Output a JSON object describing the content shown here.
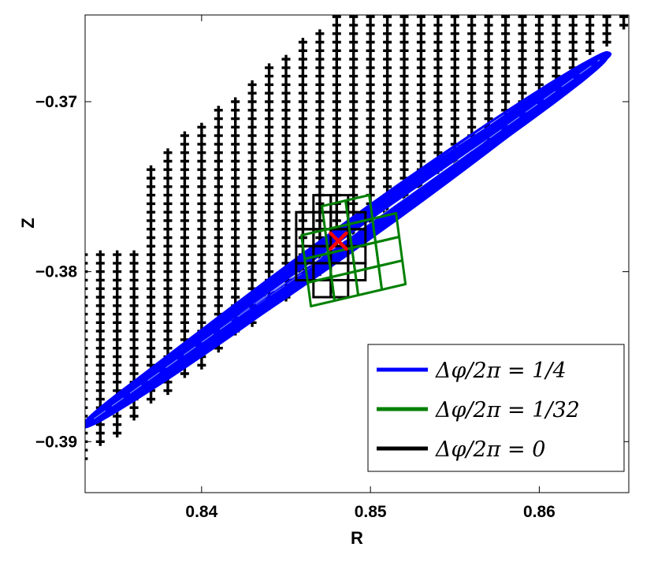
{
  "chart_data": {
    "type": "scatter",
    "xlabel": "R",
    "ylabel": "Z",
    "xlim": [
      0.8331,
      0.8653
    ],
    "ylim": [
      -0.393,
      -0.3649
    ],
    "xticks": [
      0.84,
      0.85,
      0.86
    ],
    "xtick_labels": [
      "0.84",
      "0.85",
      "0.86"
    ],
    "yticks": [
      -0.37,
      -0.38,
      -0.39
    ],
    "ytick_labels": [
      "−0.37",
      "−0.38",
      "−0.39"
    ],
    "grid": false,
    "legend_position": "bottom-right",
    "grid_points": {
      "marker": "plus",
      "color": "#000000",
      "dR": 0.001,
      "dZ": 0.0005
    },
    "center_point": {
      "R": 0.8481,
      "Z": -0.3782,
      "marker": "x",
      "color": "#ff0000"
    },
    "series": [
      {
        "name": "Δφ/2π = 1/4",
        "color": "#0000ff",
        "center": {
          "R": 0.8486,
          "Z": -0.3781
        },
        "axis_end": {
          "R": 0.8642,
          "Z": -0.3671
        },
        "half_width_Z": 0.0006
      },
      {
        "name": "Δφ/2π = 1/32",
        "color": "#008000",
        "R_range": [
          0.8456,
          0.8522
        ],
        "Z_range": [
          -0.3817,
          -0.3755
        ]
      },
      {
        "name": "Δφ/2π = 0",
        "color": "#000000",
        "R_range": [
          0.8456,
          0.8497
        ],
        "Z_range": [
          -0.3815,
          -0.3755
        ]
      }
    ]
  },
  "legend": {
    "items": [
      {
        "label": "Δφ/2π = 1/4",
        "color": "#0000ff"
      },
      {
        "label": "Δφ/2π = 1/32",
        "color": "#008000"
      },
      {
        "label": "Δφ/2π = 0",
        "color": "#000000"
      }
    ]
  }
}
